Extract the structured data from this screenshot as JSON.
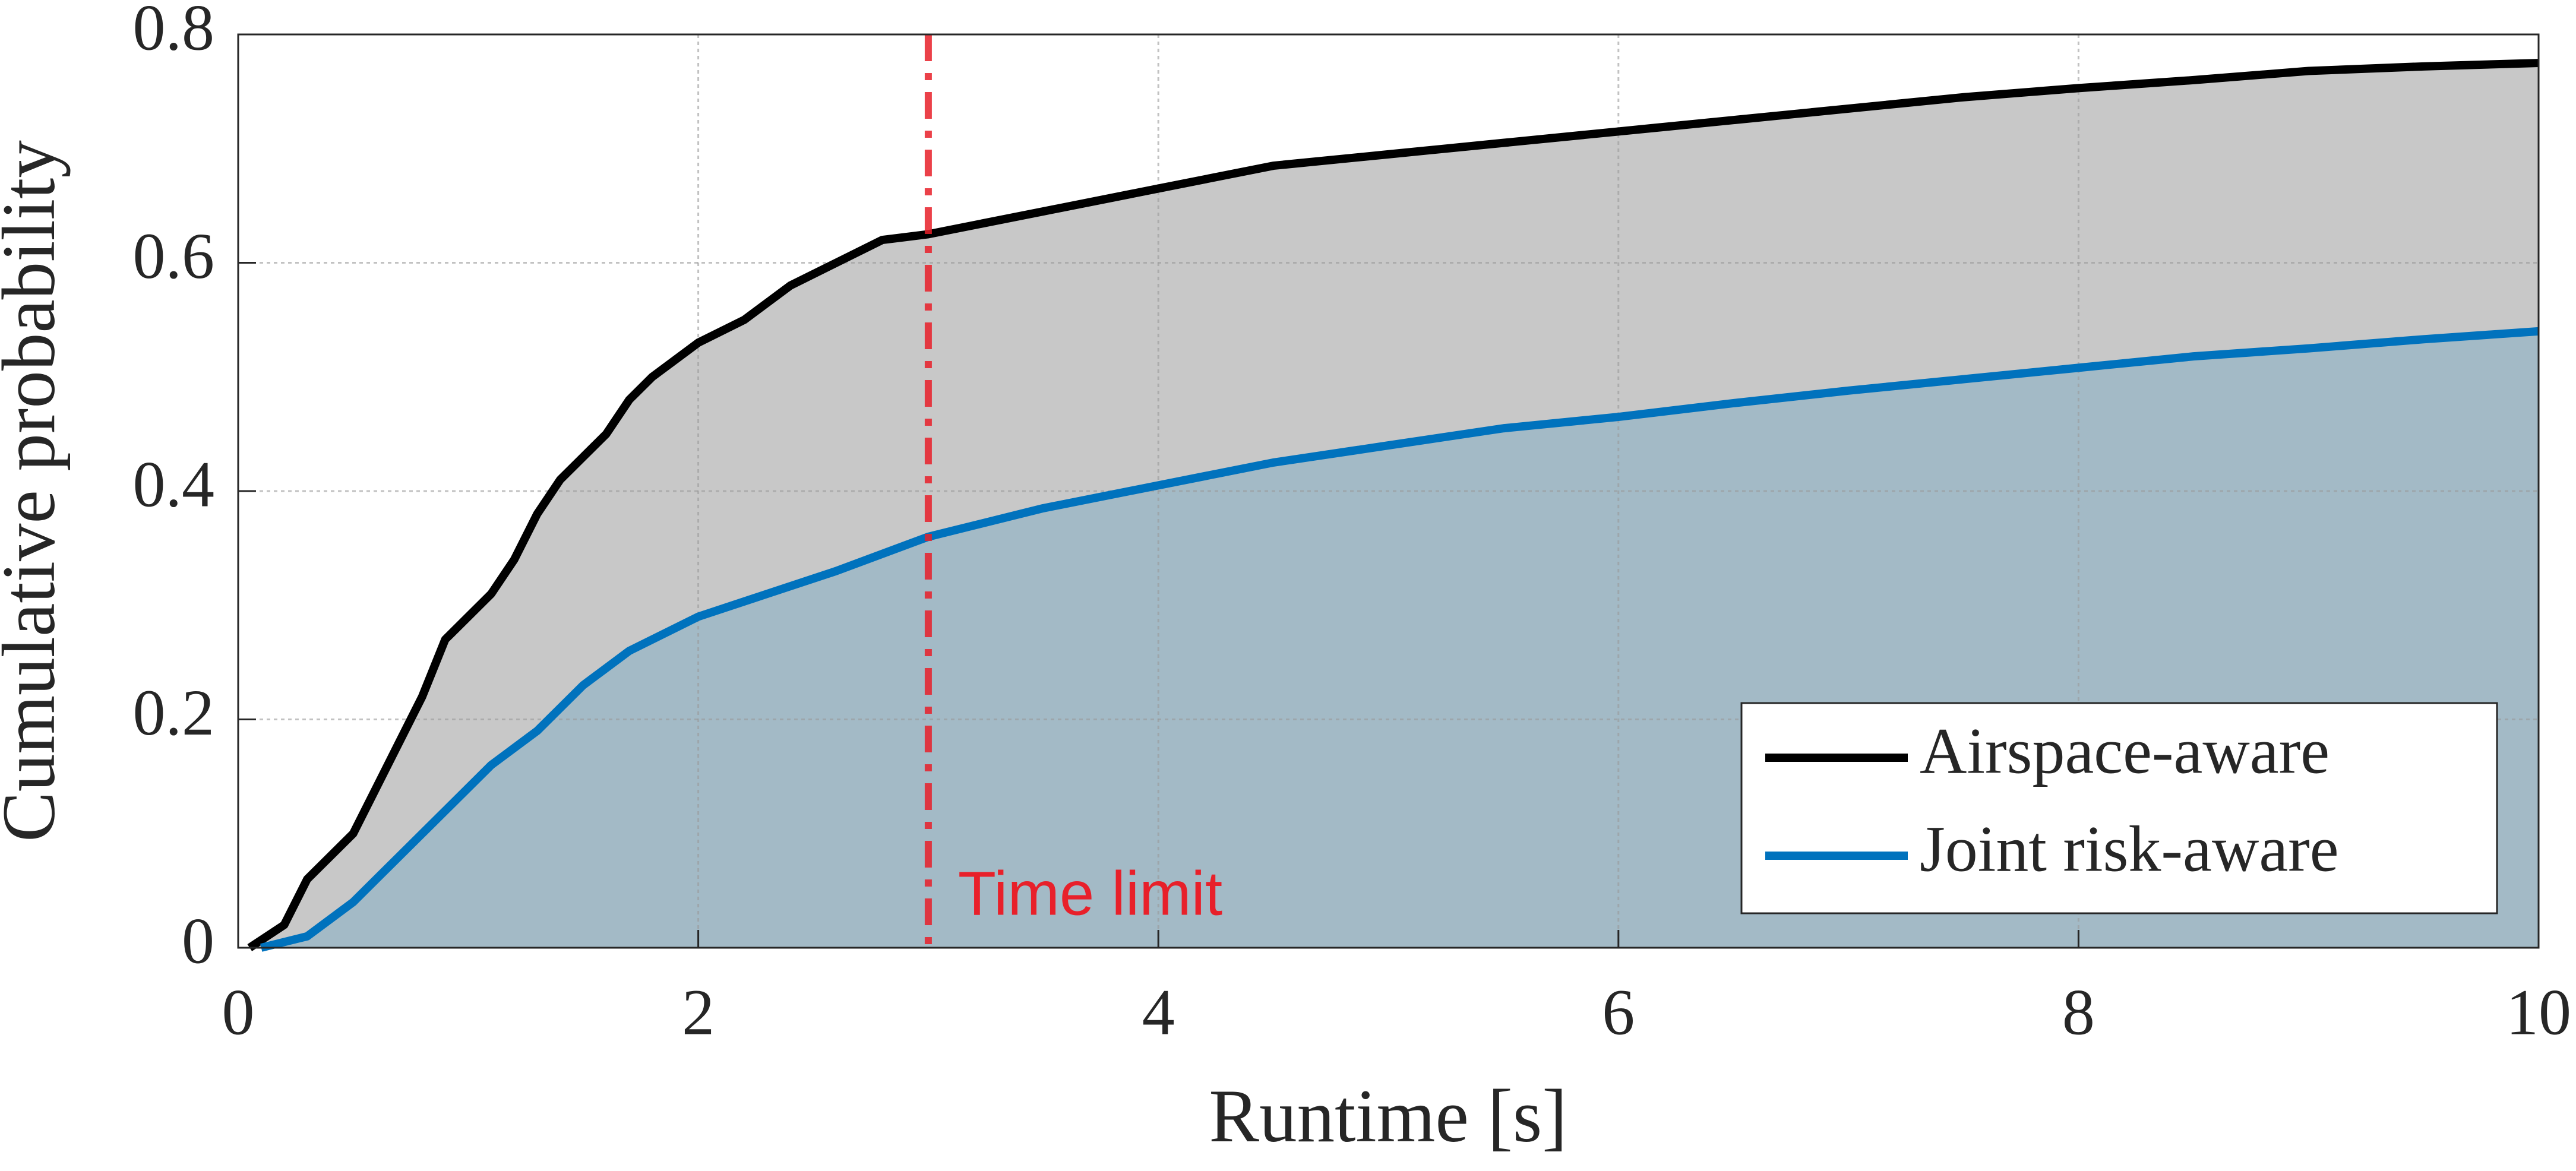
{
  "chart_data": {
    "type": "line",
    "x_label": "Runtime [s]",
    "y_label": "Cumulative probability",
    "xlim": [
      0,
      10
    ],
    "ylim": [
      0,
      0.8
    ],
    "xticks": [
      0,
      2,
      4,
      6,
      8,
      10
    ],
    "yticks": [
      0,
      0.2,
      0.4,
      0.6,
      0.8
    ],
    "grid": true,
    "legend": "lower right",
    "series": [
      {
        "name": "Airspace-aware",
        "color": "#000000",
        "fill": "#c8c8c8",
        "x": [
          0.05,
          0.2,
          0.3,
          0.5,
          0.6,
          0.7,
          0.8,
          0.9,
          1.0,
          1.1,
          1.2,
          1.3,
          1.4,
          1.5,
          1.6,
          1.7,
          1.8,
          2.0,
          2.2,
          2.4,
          2.6,
          2.8,
          3.0,
          3.5,
          4.0,
          4.5,
          5.0,
          5.5,
          6.0,
          6.5,
          7.0,
          7.5,
          8.0,
          8.5,
          9.0,
          9.5,
          10
        ],
        "values": [
          0,
          0.02,
          0.06,
          0.1,
          0.14,
          0.18,
          0.22,
          0.27,
          0.29,
          0.31,
          0.34,
          0.38,
          0.41,
          0.43,
          0.45,
          0.48,
          0.5,
          0.53,
          0.55,
          0.58,
          0.6,
          0.62,
          0.625,
          0.645,
          0.665,
          0.685,
          0.695,
          0.705,
          0.715,
          0.725,
          0.735,
          0.745,
          0.753,
          0.76,
          0.768,
          0.772,
          0.775
        ]
      },
      {
        "name": "Joint risk-aware",
        "color": "#0072bd",
        "fill": "#a3bac6",
        "x": [
          0.1,
          0.3,
          0.5,
          0.7,
          0.9,
          1.1,
          1.3,
          1.5,
          1.7,
          2.0,
          2.3,
          2.6,
          3.0,
          3.5,
          4.0,
          4.5,
          5.0,
          5.5,
          6.0,
          6.5,
          7.0,
          7.5,
          8.0,
          8.5,
          9.0,
          9.5,
          10
        ],
        "values": [
          0,
          0.01,
          0.04,
          0.08,
          0.12,
          0.16,
          0.19,
          0.23,
          0.26,
          0.29,
          0.31,
          0.33,
          0.36,
          0.385,
          0.405,
          0.425,
          0.44,
          0.455,
          0.465,
          0.477,
          0.488,
          0.498,
          0.508,
          0.518,
          0.525,
          0.533,
          0.54
        ]
      }
    ],
    "vline": {
      "x": 3,
      "label": "Time limit",
      "color": "#e8202a"
    }
  }
}
